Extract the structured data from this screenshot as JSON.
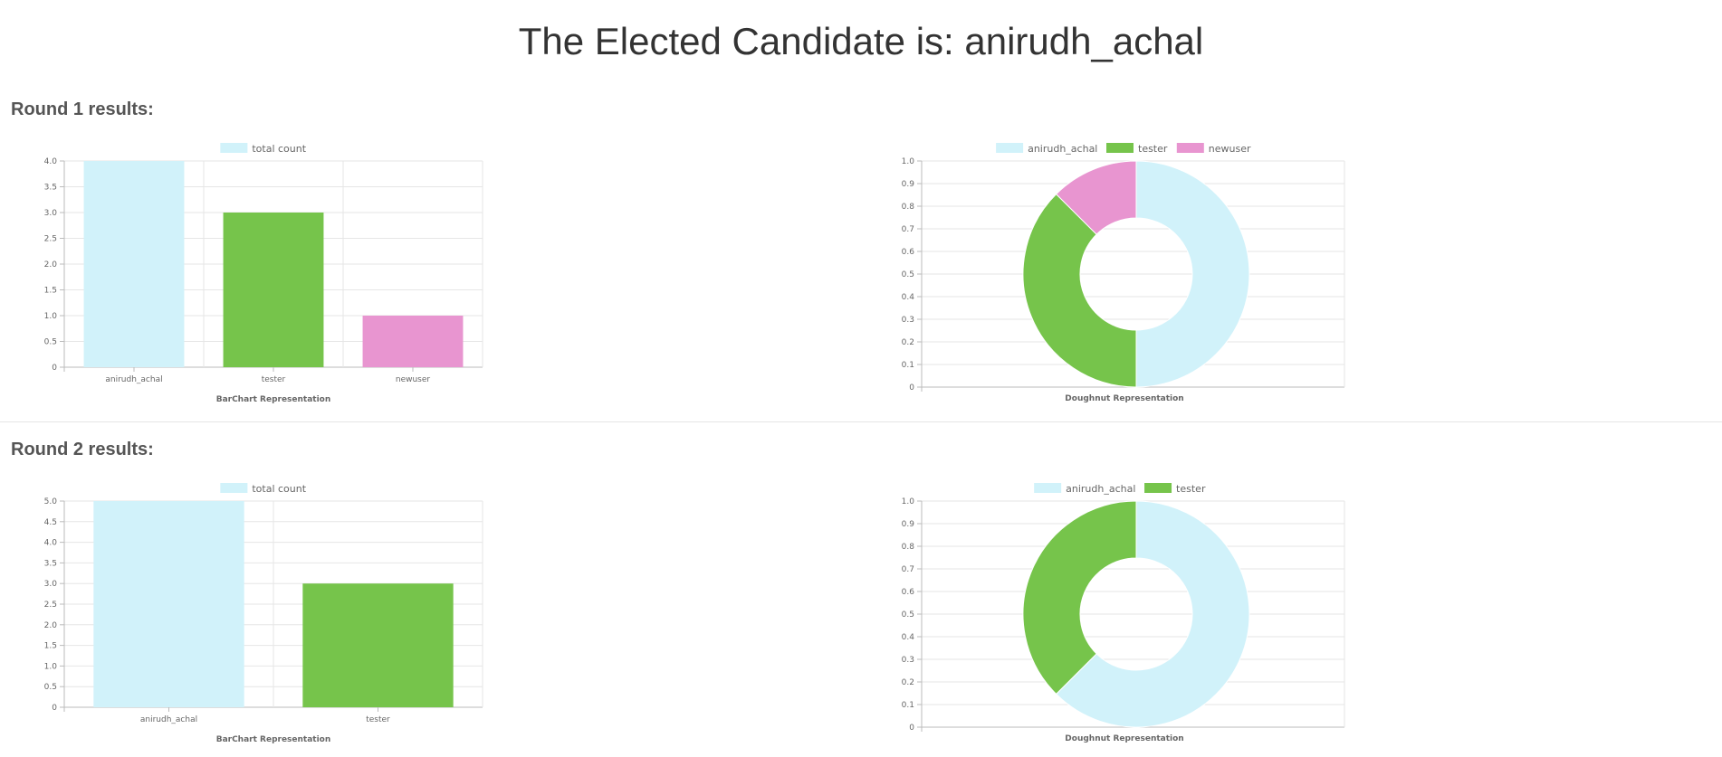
{
  "page": {
    "title": "The Elected Candidate is: anirudh_achal"
  },
  "colors": {
    "anirudh_achal": "#d1f2fa",
    "tester": "#76c44b",
    "newuser": "#e895d0"
  },
  "rounds": [
    {
      "heading": "Round 1 results:"
    },
    {
      "heading": "Round 2 results:"
    }
  ],
  "chart_data": [
    {
      "type": "bar",
      "legend": [
        "total count"
      ],
      "legend_position": "top",
      "categories": [
        "anirudh_achal",
        "tester",
        "newuser"
      ],
      "series": [
        {
          "name": "total count",
          "values": [
            4,
            3,
            1
          ]
        }
      ],
      "xlabel": "BarChart Representation",
      "ylabel": "",
      "ylim": [
        0,
        4
      ],
      "yticks": [
        "0",
        "0.5",
        "1.0",
        "1.5",
        "2.0",
        "2.5",
        "3.0",
        "3.5",
        "4.0"
      ],
      "grid": true
    },
    {
      "type": "pie",
      "subtype": "doughnut",
      "legend": [
        "anirudh_achal",
        "tester",
        "newuser"
      ],
      "legend_position": "top",
      "labels": [
        "anirudh_achal",
        "tester",
        "newuser"
      ],
      "values": [
        4,
        3,
        1
      ],
      "xlabel": "Doughnut Representation",
      "ylim": [
        0,
        1
      ],
      "yticks": [
        "0",
        "0.1",
        "0.2",
        "0.3",
        "0.4",
        "0.5",
        "0.6",
        "0.7",
        "0.8",
        "0.9",
        "1.0"
      ],
      "grid": true
    },
    {
      "type": "bar",
      "legend": [
        "total count"
      ],
      "legend_position": "top",
      "categories": [
        "anirudh_achal",
        "tester"
      ],
      "series": [
        {
          "name": "total count",
          "values": [
            5,
            3
          ]
        }
      ],
      "xlabel": "BarChart Representation",
      "ylabel": "",
      "ylim": [
        0,
        5
      ],
      "yticks": [
        "0",
        "0.5",
        "1.0",
        "1.5",
        "2.0",
        "2.5",
        "3.0",
        "3.5",
        "4.0",
        "4.5",
        "5.0"
      ],
      "grid": true
    },
    {
      "type": "pie",
      "subtype": "doughnut",
      "legend": [
        "anirudh_achal",
        "tester"
      ],
      "legend_position": "top",
      "labels": [
        "anirudh_achal",
        "tester"
      ],
      "values": [
        5,
        3
      ],
      "xlabel": "Doughnut Representation",
      "ylim": [
        0,
        1
      ],
      "yticks": [
        "0",
        "0.1",
        "0.2",
        "0.3",
        "0.4",
        "0.5",
        "0.6",
        "0.7",
        "0.8",
        "0.9",
        "1.0"
      ],
      "grid": true
    }
  ]
}
